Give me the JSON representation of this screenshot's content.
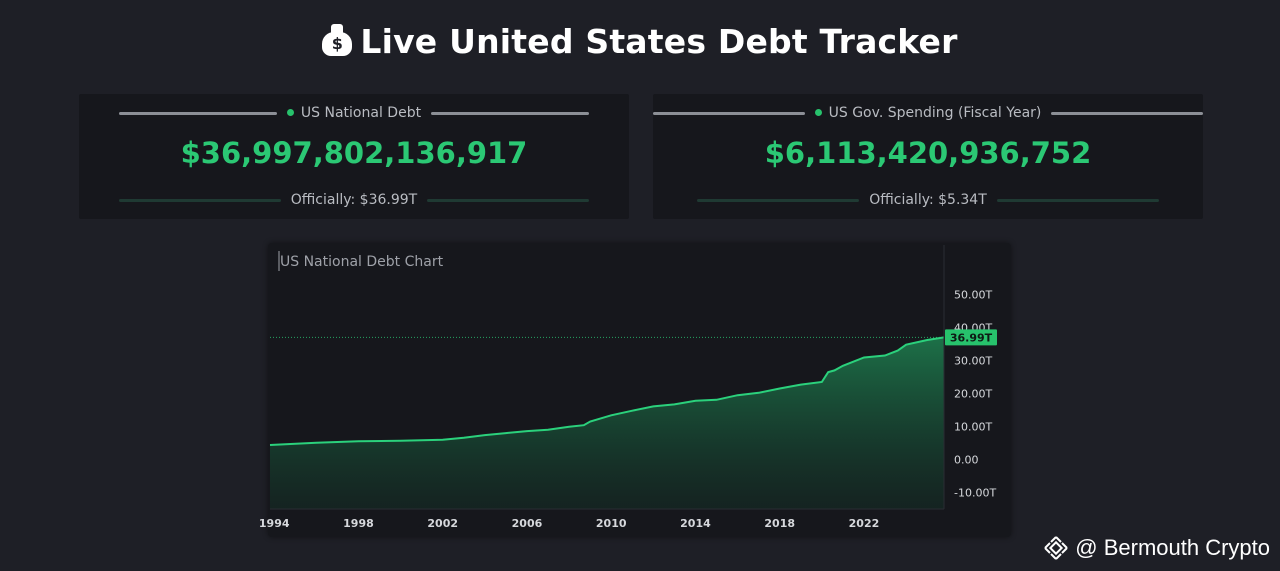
{
  "header": {
    "title": "Live United States Debt Tracker",
    "icon": "money-bag-icon"
  },
  "cards": [
    {
      "label": "US National Debt",
      "value": "$36,997,802,136,917",
      "official": "Officially: $36.99T"
    },
    {
      "label": "US Gov. Spending (Fiscal Year)",
      "value": "$6,113,420,936,752",
      "official": "Officially: $5.34T"
    }
  ],
  "colors": {
    "accent": "#2bc874",
    "background": "#1e1f26",
    "panel": "#16171c"
  },
  "chart_data": {
    "type": "area",
    "title": "US National Debt Chart",
    "x_ticks": [
      "1994",
      "1998",
      "2002",
      "2006",
      "2010",
      "2014",
      "2018",
      "2022"
    ],
    "y_ticks": [
      "50.00T",
      "40.00T",
      "30.00T",
      "20.00T",
      "10.00T",
      "0.00",
      "-10.00T"
    ],
    "ylim": [
      -15,
      65
    ],
    "xlim": [
      1993.8,
      2025.8
    ],
    "current_label": "36.99T",
    "current_value": 36.99,
    "series": [
      {
        "x": [
          1993.8,
          1996,
          1998,
          2000,
          2002,
          2003,
          2004,
          2005,
          2006,
          2007,
          2008,
          2008.7,
          2009,
          2010,
          2011,
          2012,
          2013,
          2014,
          2015,
          2016,
          2017,
          2018,
          2019,
          2020,
          2020.3,
          2020.6,
          2021,
          2022,
          2023,
          2023.6,
          2024,
          2025,
          2025.8
        ],
        "y": [
          4.4,
          5.1,
          5.5,
          5.7,
          6.0,
          6.6,
          7.4,
          8.0,
          8.6,
          9.0,
          9.9,
          10.4,
          11.5,
          13.4,
          14.8,
          16.1,
          16.7,
          17.8,
          18.1,
          19.5,
          20.2,
          21.5,
          22.7,
          23.5,
          26.5,
          27.0,
          28.4,
          30.9,
          31.5,
          33.0,
          34.8,
          36.2,
          36.99
        ]
      }
    ]
  },
  "watermark": {
    "text": "@ Bermouth Crypto",
    "icon": "binance-logo-icon"
  }
}
